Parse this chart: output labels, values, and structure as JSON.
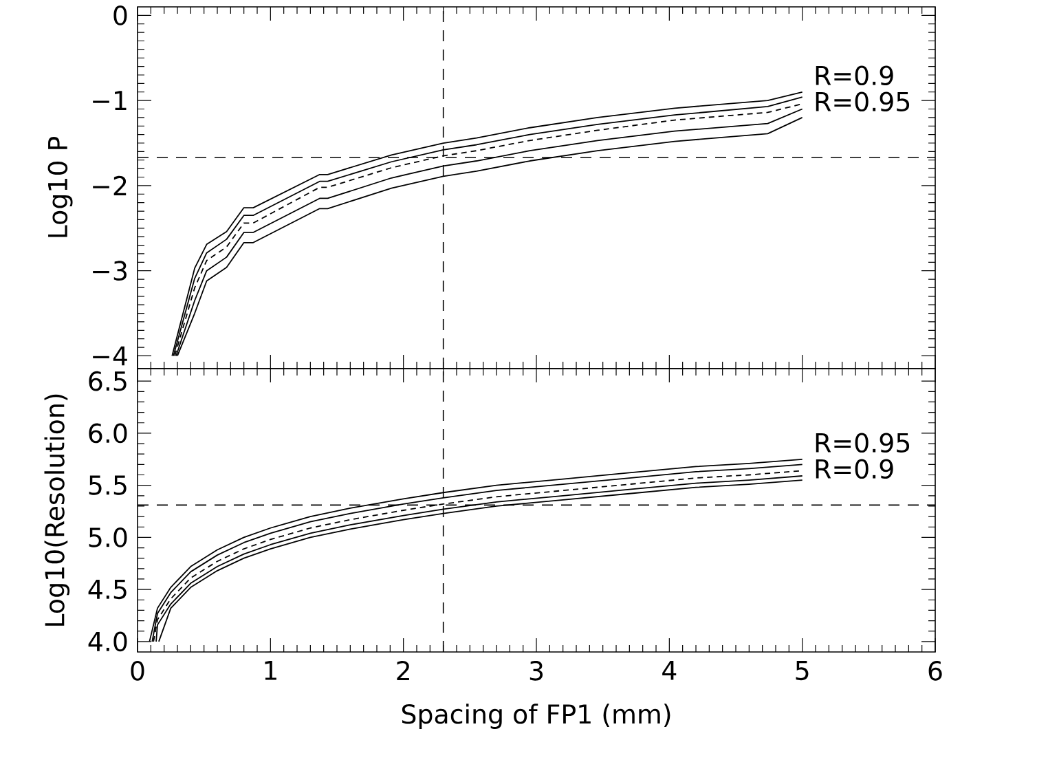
{
  "chart_data": [
    {
      "type": "line",
      "ylabel": "Log10 P",
      "xlim": [
        0,
        6
      ],
      "xticks": [
        0,
        1,
        2,
        3,
        4,
        5,
        6
      ],
      "ylim": [
        -4.15,
        0.1
      ],
      "yticks": [
        {
          "value": -4,
          "label": "−4"
        },
        {
          "value": -3,
          "label": "−3"
        },
        {
          "value": -2,
          "label": "−2"
        },
        {
          "value": -1,
          "label": "−1"
        },
        0
      ],
      "tick_labels": "y",
      "series": [
        {
          "color": "#000000",
          "line_style": "solid",
          "x": [
            0.26,
            0.43,
            0.52,
            0.67,
            0.8,
            0.87,
            1.37,
            1.43,
            1.91,
            2.3,
            2.55,
            2.95,
            3.46,
            4.04,
            4.74,
            5.0
          ],
          "values": [
            -4,
            -2.97,
            -2.69,
            -2.54,
            -2.26,
            -2.26,
            -1.87,
            -1.87,
            -1.64,
            -1.5,
            -1.44,
            -1.32,
            -1.2,
            -1.09,
            -1.0,
            -0.9
          ]
        },
        {
          "color": "#000000",
          "line_style": "solid",
          "x": [
            0.27,
            0.43,
            0.52,
            0.67,
            0.8,
            0.87,
            1.37,
            1.43,
            1.91,
            2.3,
            2.55,
            2.95,
            3.46,
            4.04,
            4.74,
            5.0
          ],
          "values": [
            -4,
            -3.09,
            -2.79,
            -2.63,
            -2.35,
            -2.35,
            -1.95,
            -1.95,
            -1.72,
            -1.58,
            -1.52,
            -1.4,
            -1.28,
            -1.17,
            -1.07,
            -0.96
          ]
        },
        {
          "color": "#000000",
          "line_style": "dashed",
          "x": [
            0.28,
            0.43,
            0.52,
            0.67,
            0.8,
            0.87,
            1.37,
            1.43,
            1.91,
            2.3,
            2.55,
            2.95,
            3.46,
            4.04,
            4.74,
            5.0
          ],
          "values": [
            -4,
            -3.2,
            -2.88,
            -2.72,
            -2.44,
            -2.44,
            -2.02,
            -2.02,
            -1.79,
            -1.65,
            -1.59,
            -1.47,
            -1.35,
            -1.23,
            -1.14,
            -1.04
          ]
        },
        {
          "color": "#000000",
          "line_style": "solid",
          "x": [
            0.29,
            0.43,
            0.52,
            0.67,
            0.8,
            0.87,
            1.37,
            1.43,
            1.91,
            2.3,
            2.55,
            2.95,
            3.46,
            4.04,
            4.74,
            5.0
          ],
          "values": [
            -4,
            -3.35,
            -3.0,
            -2.84,
            -2.55,
            -2.55,
            -2.15,
            -2.15,
            -1.91,
            -1.77,
            -1.71,
            -1.59,
            -1.47,
            -1.36,
            -1.27,
            -1.1
          ]
        },
        {
          "color": "#000000",
          "line_style": "solid",
          "x": [
            0.3,
            0.43,
            0.52,
            0.67,
            0.8,
            0.87,
            1.37,
            1.43,
            1.91,
            2.3,
            2.55,
            2.95,
            3.46,
            4.04,
            4.74,
            5.0
          ],
          "values": [
            -4,
            -3.5,
            -3.12,
            -2.96,
            -2.67,
            -2.67,
            -2.27,
            -2.27,
            -2.03,
            -1.89,
            -1.83,
            -1.71,
            -1.59,
            -1.48,
            -1.39,
            -1.2
          ]
        }
      ],
      "ref_lines": [
        {
          "axis": "x",
          "value": 2.3,
          "line_style": "dashed"
        },
        {
          "axis": "y",
          "value": -1.67,
          "line_style": "dashed"
        }
      ],
      "annotations": [
        "R=0.9",
        "R=0.95"
      ]
    },
    {
      "type": "line",
      "xlabel": "Spacing of FP1 (mm)",
      "ylabel": "Log10(Resolution)",
      "xlim": [
        0,
        6
      ],
      "xticks": [
        0,
        1,
        2,
        3,
        4,
        5,
        6
      ],
      "ylim": [
        3.9,
        6.62
      ],
      "yticks": [
        {
          "value": 4.0,
          "label": "4.0"
        },
        4.5,
        {
          "value": 5.0,
          "label": "5.0"
        },
        5.5,
        {
          "value": 6.0,
          "label": "6.0"
        },
        6.5
      ],
      "series": [
        {
          "color": "#000000",
          "line_style": "solid",
          "x": [
            0.09,
            0.15,
            0.25,
            0.4,
            0.6,
            0.8,
            1.0,
            1.3,
            1.6,
            2.0,
            2.3,
            2.7,
            3.2,
            3.7,
            4.2,
            4.6,
            5.0
          ],
          "values": [
            4.0,
            4.32,
            4.52,
            4.72,
            4.88,
            5.0,
            5.09,
            5.2,
            5.28,
            5.37,
            5.43,
            5.5,
            5.56,
            5.62,
            5.68,
            5.71,
            5.75
          ]
        },
        {
          "color": "#000000",
          "line_style": "solid",
          "x": [
            0.11,
            0.15,
            0.25,
            0.4,
            0.6,
            0.8,
            1.0,
            1.3,
            1.6,
            2.0,
            2.3,
            2.7,
            3.2,
            3.7,
            4.2,
            4.6,
            5.0
          ],
          "values": [
            4.0,
            4.27,
            4.47,
            4.67,
            4.83,
            4.95,
            5.04,
            5.15,
            5.23,
            5.32,
            5.38,
            5.45,
            5.51,
            5.57,
            5.63,
            5.66,
            5.7
          ]
        },
        {
          "color": "#000000",
          "line_style": "dashed",
          "x": [
            0.12,
            0.15,
            0.25,
            0.4,
            0.6,
            0.8,
            1.0,
            1.3,
            1.6,
            2.0,
            2.3,
            2.7,
            3.2,
            3.7,
            4.2,
            4.6,
            5.0
          ],
          "values": [
            4.0,
            4.21,
            4.41,
            4.61,
            4.77,
            4.89,
            4.98,
            5.09,
            5.17,
            5.26,
            5.32,
            5.39,
            5.45,
            5.51,
            5.57,
            5.6,
            5.64
          ]
        },
        {
          "color": "#000000",
          "line_style": "solid",
          "x": [
            0.14,
            0.15,
            0.25,
            0.4,
            0.6,
            0.8,
            1.0,
            1.3,
            1.6,
            2.0,
            2.3,
            2.7,
            3.2,
            3.7,
            4.2,
            4.6,
            5.0
          ],
          "values": [
            4.0,
            4.16,
            4.36,
            4.56,
            4.72,
            4.84,
            4.93,
            5.04,
            5.12,
            5.21,
            5.27,
            5.34,
            5.4,
            5.46,
            5.52,
            5.55,
            5.59
          ]
        },
        {
          "color": "#000000",
          "line_style": "solid",
          "x": [
            0.16,
            0.25,
            0.4,
            0.6,
            0.8,
            1.0,
            1.3,
            1.6,
            2.0,
            2.3,
            2.7,
            3.2,
            3.7,
            4.2,
            4.6,
            5.0
          ],
          "values": [
            4.0,
            4.32,
            4.52,
            4.68,
            4.8,
            4.89,
            5.0,
            5.08,
            5.17,
            5.23,
            5.3,
            5.36,
            5.42,
            5.48,
            5.51,
            5.55
          ]
        }
      ],
      "ref_lines": [
        {
          "axis": "x",
          "value": 2.3,
          "line_style": "dashed"
        },
        {
          "axis": "y",
          "value": 5.31,
          "line_style": "dashed"
        }
      ],
      "annotations": [
        "R=0.95",
        "R=0.9"
      ]
    }
  ]
}
